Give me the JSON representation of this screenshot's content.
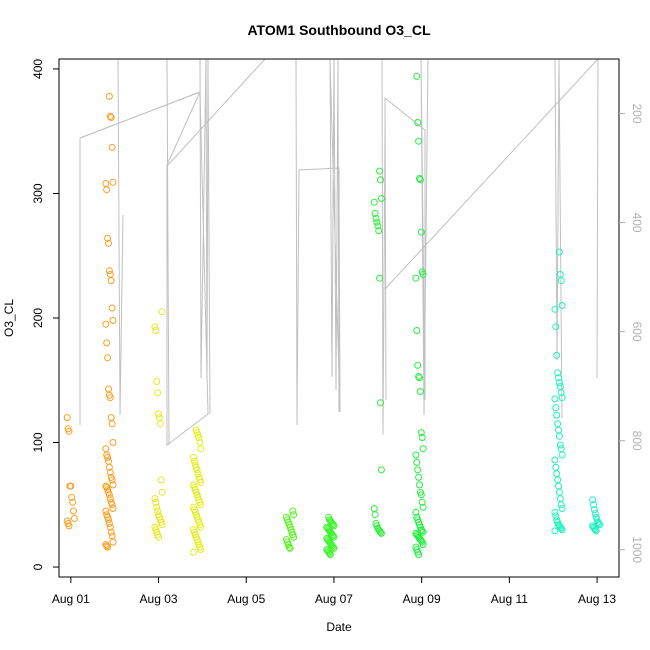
{
  "chart_data": {
    "type": "scatter",
    "title": "ATOM1 Southbound O3_CL",
    "xlabel": "Date",
    "ylabel": "O3_CL",
    "x_ticks": [
      "Aug 01",
      "Aug 03",
      "Aug 05",
      "Aug 07",
      "Aug 09",
      "Aug 11",
      "Aug 13"
    ],
    "y_ticks": [
      "0",
      "100",
      "200",
      "300",
      "400"
    ],
    "y2_ticks": [
      "200",
      "400",
      "600",
      "800",
      "1000"
    ],
    "xlim_days": [
      0.73,
      13.5
    ],
    "ylim": [
      -8,
      408
    ],
    "y2lim_inverted": [
      100,
      1050
    ],
    "grid": false,
    "point_color_scale": "orange-yellow-green-cyan by date",
    "secondary_series_color": "#c0c0c0",
    "clusters": [
      {
        "day": 1.0,
        "color": "#ff9d1f",
        "y": [
          120,
          111,
          109,
          65,
          65,
          56,
          52,
          45,
          39,
          37,
          35,
          33
        ]
      },
      {
        "day": 1.88,
        "color": "#ff9d1f",
        "y": [
          378,
          362,
          361,
          337,
          309,
          308,
          303,
          264,
          260,
          238,
          235,
          230,
          208,
          198,
          195,
          180,
          168,
          143,
          138,
          136,
          120,
          115,
          100,
          95,
          90,
          88,
          85,
          80,
          76,
          72,
          70,
          66,
          65,
          64,
          62,
          60,
          58,
          55,
          52,
          50,
          47,
          45,
          42,
          40,
          38,
          35,
          32,
          28,
          25,
          20,
          18,
          17,
          16
        ]
      },
      {
        "day": 3.0,
        "color": "#e8e820",
        "y": [
          205,
          193,
          190,
          149,
          140,
          123,
          120,
          115,
          70,
          60,
          55,
          52,
          48,
          45,
          42,
          40,
          38,
          36,
          34,
          32,
          30,
          28,
          26,
          24
        ]
      },
      {
        "day": 3.88,
        "color": "#e4ef1c",
        "y": [
          110,
          108,
          106,
          104,
          100,
          95,
          88,
          85,
          82,
          80,
          78,
          75,
          72,
          70,
          68,
          66,
          64,
          62,
          60,
          58,
          56,
          54,
          52,
          50,
          48,
          46,
          44,
          42,
          40,
          38,
          36,
          34,
          32,
          30,
          28,
          26,
          24,
          22,
          20,
          18,
          16,
          14,
          12
        ]
      },
      {
        "day": 6.0,
        "color": "#55f41a",
        "y": [
          45,
          42,
          40,
          38,
          36,
          34,
          32,
          30,
          28,
          26,
          24,
          22,
          20,
          18,
          16,
          15
        ]
      },
      {
        "day": 6.92,
        "color": "#3af52a",
        "y": [
          40,
          38,
          37,
          36,
          35,
          34,
          33,
          32,
          31,
          30,
          29,
          28,
          27,
          26,
          25,
          24,
          23,
          22,
          21,
          20,
          19,
          18,
          17,
          16,
          15,
          14,
          13,
          12,
          11,
          10
        ]
      },
      {
        "day": 8.0,
        "color": "#2eef3c",
        "y": [
          318,
          311,
          296,
          293,
          284,
          280,
          277,
          274,
          270,
          232,
          132,
          78,
          47,
          42,
          35,
          33,
          31,
          30,
          29,
          28,
          27
        ]
      },
      {
        "day": 8.95,
        "color": "#23f040",
        "y": [
          394,
          357,
          342,
          312,
          311,
          269,
          237,
          235,
          232,
          190,
          162,
          153,
          152,
          141,
          108,
          104,
          95,
          90,
          84,
          78,
          72,
          66,
          60,
          58,
          52,
          48,
          44,
          40,
          38,
          36,
          34,
          32,
          30,
          29,
          28,
          27,
          26,
          25,
          24,
          23,
          22,
          21,
          20,
          18,
          16,
          14,
          12,
          10
        ]
      },
      {
        "day": 12.12,
        "color": "#1ff5bb",
        "y": [
          253,
          235,
          230,
          210,
          207,
          193,
          170,
          156,
          152,
          148,
          145,
          140,
          136,
          135,
          128,
          122,
          115,
          110,
          105,
          98,
          95,
          90,
          86,
          80,
          75,
          70,
          65,
          60,
          55,
          50,
          47,
          44,
          41,
          38,
          36,
          34,
          33,
          32,
          31,
          30,
          29
        ]
      },
      {
        "day": 12.98,
        "color": "#1ff0c4",
        "y": [
          54,
          50,
          46,
          43,
          40,
          38,
          36,
          35,
          34,
          33,
          32,
          31,
          30,
          29
        ]
      }
    ]
  }
}
